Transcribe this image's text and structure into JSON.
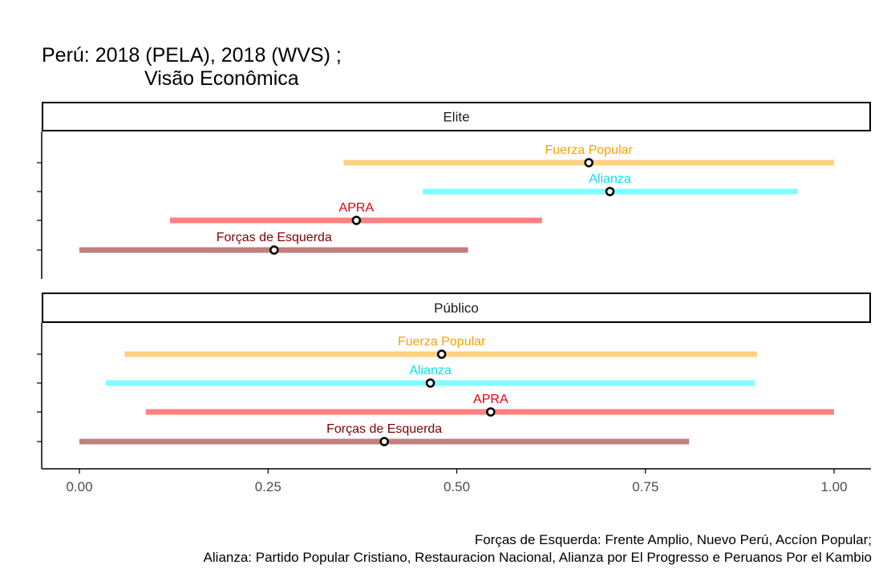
{
  "title": "Perú: 2018 (PELA), 2018 (WVS) ;",
  "subtitle": "Visão Econômica",
  "caption": [
    "Forças de Esquerda: Frente Amplio, Nuevo Perú, Accíon Popular;",
    "Alianza: Partido Popular Cristiano, Restauracion Nacional, Alianza por El Progresso e Peruanos Por el Kambio"
  ],
  "chart_data": {
    "type": "range-dot",
    "xlim": [
      -0.05,
      1.05
    ],
    "x_ticks": [
      0.0,
      0.25,
      0.5,
      0.75,
      1.0
    ],
    "x_tick_labels": [
      "0.00",
      "0.25",
      "0.50",
      "0.75",
      "1.00"
    ],
    "colors": {
      "Fuerza Popular": "#ffa500",
      "Alianza": "#00ffff",
      "APRA": "#ff0000",
      "Forças de Esquerda": "#800000"
    },
    "panels": [
      {
        "name": "Elite",
        "series": [
          {
            "name": "Fuerza Popular",
            "low": 0.35,
            "high": 1.0,
            "point": 0.675
          },
          {
            "name": "Alianza",
            "low": 0.455,
            "high": 0.952,
            "point": 0.703
          },
          {
            "name": "APRA",
            "low": 0.12,
            "high": 0.613,
            "point": 0.367
          },
          {
            "name": "Forças de Esquerda",
            "low": 0.0,
            "high": 0.515,
            "point": 0.258
          }
        ]
      },
      {
        "name": "Público",
        "series": [
          {
            "name": "Fuerza Popular",
            "low": 0.06,
            "high": 0.898,
            "point": 0.48
          },
          {
            "name": "Alianza",
            "low": 0.035,
            "high": 0.895,
            "point": 0.465
          },
          {
            "name": "APRA",
            "low": 0.088,
            "high": 1.0,
            "point": 0.545
          },
          {
            "name": "Forças de Esquerda",
            "low": 0.0,
            "high": 0.808,
            "point": 0.404
          }
        ]
      }
    ]
  }
}
